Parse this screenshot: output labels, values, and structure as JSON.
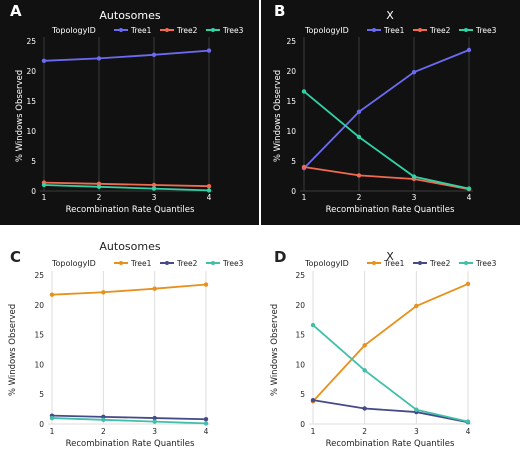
{
  "panels": [
    {
      "letter": "A",
      "title": "Autosomes",
      "theme": "dark"
    },
    {
      "letter": "B",
      "title": "X",
      "theme": "dark"
    },
    {
      "letter": "C",
      "title": "Autosomes",
      "theme": "light"
    },
    {
      "letter": "D",
      "title": "X",
      "theme": "light"
    }
  ],
  "legend_title": "TopologyID",
  "colors": {
    "dark": {
      "Tree1": "#6b6bf2",
      "Tree2": "#f26a4f",
      "Tree3": "#2fd3a6",
      "background": "#111111",
      "text": "#ffffff",
      "grid": "#3a3a3a"
    },
    "light": {
      "Tree1": "#e8901c",
      "Tree2": "#454a8a",
      "Tree3": "#41bfa8",
      "background": "#ffffff",
      "text": "#222222",
      "grid": "#dddddd"
    }
  },
  "chart_data": [
    {
      "type": "line",
      "title": "Autosomes",
      "xlabel": "Recombination Rate Quantiles",
      "ylabel": "% Windows Observed",
      "x": [
        1,
        2,
        3,
        4
      ],
      "yticks": [
        0,
        5,
        10,
        15,
        20,
        25
      ],
      "ylim": [
        0,
        25
      ],
      "series": [
        {
          "name": "Tree1",
          "values": [
            21.7,
            22.1,
            22.7,
            23.4
          ]
        },
        {
          "name": "Tree2",
          "values": [
            1.4,
            1.2,
            1.0,
            0.8
          ]
        },
        {
          "name": "Tree3",
          "values": [
            1.0,
            0.7,
            0.4,
            0.1
          ]
        }
      ]
    },
    {
      "type": "line",
      "title": "X",
      "xlabel": "Recombination Rate Quantiles",
      "ylabel": "% Windows Observed",
      "x": [
        1,
        2,
        3,
        4
      ],
      "yticks": [
        0,
        5,
        10,
        15,
        20,
        25
      ],
      "ylim": [
        0,
        25
      ],
      "series": [
        {
          "name": "Tree1",
          "values": [
            3.8,
            13.2,
            19.8,
            23.5
          ]
        },
        {
          "name": "Tree2",
          "values": [
            4.0,
            2.6,
            2.0,
            0.3
          ]
        },
        {
          "name": "Tree3",
          "values": [
            16.6,
            9.0,
            2.4,
            0.4
          ]
        }
      ]
    },
    {
      "type": "line",
      "title": "Autosomes",
      "xlabel": "Recombination Rate Quantiles",
      "ylabel": "% Windows Observed",
      "x": [
        1,
        2,
        3,
        4
      ],
      "yticks": [
        0,
        5,
        10,
        15,
        20,
        25
      ],
      "ylim": [
        0,
        25
      ],
      "series": [
        {
          "name": "Tree1",
          "values": [
            21.7,
            22.1,
            22.7,
            23.4
          ]
        },
        {
          "name": "Tree2",
          "values": [
            1.4,
            1.2,
            1.0,
            0.8
          ]
        },
        {
          "name": "Tree3",
          "values": [
            1.0,
            0.7,
            0.4,
            0.1
          ]
        }
      ]
    },
    {
      "type": "line",
      "title": "X",
      "xlabel": "Recombination Rate Quantiles",
      "ylabel": "% Windows Observed",
      "x": [
        1,
        2,
        3,
        4
      ],
      "yticks": [
        0,
        5,
        10,
        15,
        20,
        25
      ],
      "ylim": [
        0,
        25
      ],
      "series": [
        {
          "name": "Tree1",
          "values": [
            3.8,
            13.2,
            19.8,
            23.5
          ]
        },
        {
          "name": "Tree2",
          "values": [
            4.0,
            2.6,
            2.0,
            0.3
          ]
        },
        {
          "name": "Tree3",
          "values": [
            16.6,
            9.0,
            2.4,
            0.4
          ]
        }
      ]
    }
  ]
}
